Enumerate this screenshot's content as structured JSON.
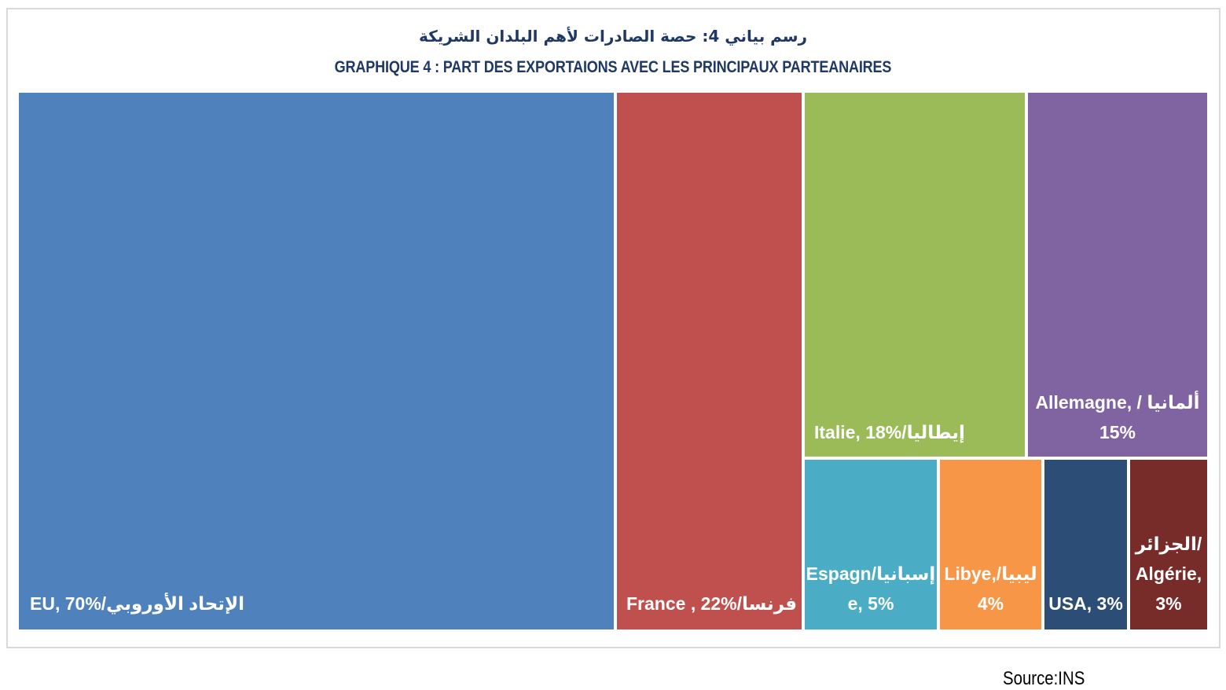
{
  "chart_data": {
    "type": "treemap",
    "title_ar": "رسم بياني 4: حصة الصادرات لأهم البلدان الشريكة",
    "title_fr": "GRAPHIQUE 4 : PART DES EXPORTAIONS AVEC LES PRINCIPAUX PARTEANAIRES",
    "source": "Source:INS",
    "items": [
      {
        "label": "EU, 70%/الإتحاد الأوروبي",
        "value": 70,
        "color": "#4f81bd"
      },
      {
        "label": "France  , 22%/فرنسا",
        "value": 22,
        "color": "#c0504d"
      },
      {
        "label": "Italie, 18%/إيطاليا",
        "value": 18,
        "color": "#9bbb59"
      },
      {
        "label": "Allemagne, / ألمانيا\n15%",
        "value": 15,
        "color": "#8064a2"
      },
      {
        "label": "Espagn/إسبانيا\ne, 5%",
        "value": 5,
        "color": "#4bacc6"
      },
      {
        "label": "Libye,/ليبيا\n4%",
        "value": 4,
        "color": "#f79646"
      },
      {
        "label": "USA, 3%",
        "value": 3,
        "color": "#2c4d75"
      },
      {
        "label": "الجزائر/\nAlgérie,\n3%",
        "value": 3,
        "color": "#772c2a"
      }
    ]
  }
}
